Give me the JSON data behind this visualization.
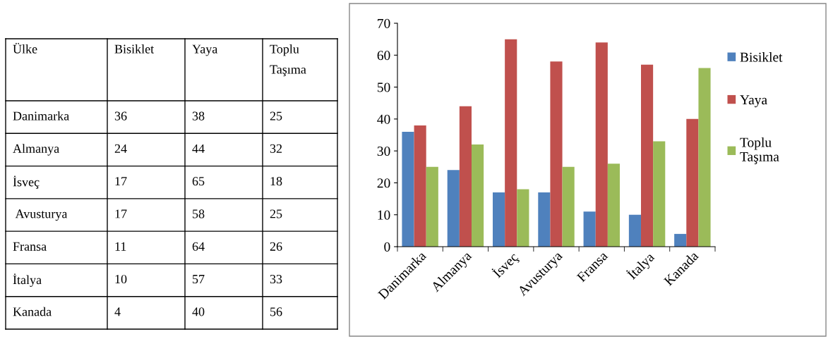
{
  "chart_data": [
    {
      "type": "other",
      "annotations": [
        "Ülke",
        "Bisiklet",
        "Yaya",
        "Toplu Taşıma",
        "Danimarka",
        "36",
        "38",
        "25",
        "Almanya",
        "24",
        "44",
        "32",
        "İsveç",
        "17",
        "65",
        "18",
        " Avusturya",
        "17",
        "58",
        "25",
        "Fransa",
        "11",
        "64",
        "26",
        "İtalya",
        "10",
        "57",
        "33",
        "Kanada",
        "4",
        "40",
        "56"
      ]
    },
    {
      "type": "bar",
      "categories": [
        "Danimarka",
        "Almanya",
        "İsveç",
        "Avusturya",
        "Fransa",
        "İtalya",
        "Kanada"
      ],
      "series": [
        {
          "name": "Bisiklet",
          "color": "#4f81bd",
          "values": [
            36,
            24,
            17,
            17,
            11,
            10,
            4
          ]
        },
        {
          "name": "Yaya",
          "color": "#c0504d",
          "values": [
            38,
            44,
            65,
            58,
            64,
            57,
            40
          ]
        },
        {
          "name": "Toplu Taşıma",
          "color": "#9bbb59",
          "values": [
            25,
            32,
            18,
            25,
            26,
            33,
            56
          ]
        }
      ],
      "ylim": [
        0,
        70
      ],
      "yticks": [
        0,
        10,
        20,
        30,
        40,
        50,
        60,
        70
      ],
      "grid": false,
      "legend": "right"
    }
  ]
}
